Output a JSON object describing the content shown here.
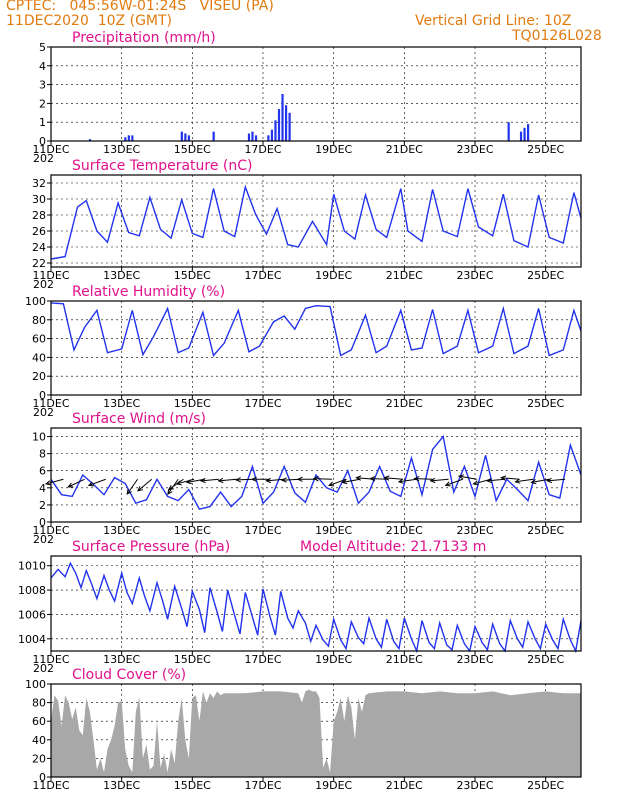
{
  "header": {
    "line1": "CPTEC:   045:56W-01:24S   VISEU (PA)",
    "line2": "11DEC2020  10Z (GMT)",
    "right1": "Vertical Grid Line: 10Z",
    "right2": "TQ0126L028"
  },
  "colors": {
    "header": "#e07b10",
    "title": "#e0118c",
    "series": "#2233ee",
    "cloud": "#a8a8a8",
    "wind": "#000000"
  },
  "x_axis": {
    "labels": [
      "11DEC",
      "13DEC",
      "15DEC",
      "17DEC",
      "19DEC",
      "21DEC",
      "23DEC",
      "25DEC"
    ],
    "label_days": [
      0,
      2,
      4,
      6,
      8,
      10,
      12,
      14
    ],
    "range_days": [
      0,
      15
    ],
    "year_stub": "202"
  },
  "chart_data": [
    {
      "id": "precip",
      "type": "bar",
      "title": "Precipitation (mm/h)",
      "ylim": [
        0,
        5
      ],
      "yticks": [
        0,
        1,
        2,
        3,
        4,
        5
      ],
      "grid": true,
      "bars_day_value": [
        [
          1.1,
          0.1
        ],
        [
          2.1,
          0.2
        ],
        [
          2.2,
          0.3
        ],
        [
          2.3,
          0.3
        ],
        [
          3.7,
          0.5
        ],
        [
          3.8,
          0.4
        ],
        [
          3.9,
          0.3
        ],
        [
          4.6,
          0.5
        ],
        [
          5.6,
          0.4
        ],
        [
          5.7,
          0.5
        ],
        [
          5.8,
          0.3
        ],
        [
          6.15,
          0.3
        ],
        [
          6.25,
          0.6
        ],
        [
          6.35,
          1.1
        ],
        [
          6.45,
          1.7
        ],
        [
          6.55,
          2.5
        ],
        [
          6.65,
          1.9
        ],
        [
          6.75,
          1.5
        ],
        [
          12.95,
          1.0
        ],
        [
          13.3,
          0.5
        ],
        [
          13.4,
          0.7
        ],
        [
          13.5,
          0.9
        ]
      ]
    },
    {
      "id": "temp",
      "type": "line",
      "title": "Surface Temperature (nC)",
      "ylim": [
        21.5,
        33
      ],
      "yticks": [
        22,
        24,
        26,
        28,
        30,
        32
      ],
      "grid": true,
      "x_days": [
        0,
        0.4,
        0.75,
        1.0,
        1.3,
        1.6,
        1.9,
        2.2,
        2.5,
        2.8,
        3.1,
        3.4,
        3.7,
        4.0,
        4.3,
        4.6,
        4.9,
        5.2,
        5.5,
        5.8,
        6.1,
        6.4,
        6.7,
        7.0,
        7.4,
        7.8,
        8.0,
        8.3,
        8.6,
        8.9,
        9.2,
        9.5,
        9.9,
        10.1,
        10.5,
        10.8,
        11.1,
        11.5,
        11.8,
        12.1,
        12.5,
        12.8,
        13.1,
        13.5,
        13.8,
        14.1,
        14.5,
        14.8,
        15.0
      ],
      "values": [
        22.5,
        22.8,
        29.0,
        29.8,
        26.0,
        24.6,
        29.5,
        25.8,
        25.4,
        30.2,
        26.2,
        25.1,
        29.9,
        25.7,
        25.2,
        31.3,
        26.0,
        25.3,
        31.5,
        28.0,
        25.6,
        28.8,
        24.3,
        24.0,
        27.2,
        24.3,
        30.6,
        26.0,
        25.0,
        30.5,
        26.2,
        25.2,
        31.3,
        26.0,
        24.7,
        31.2,
        26.0,
        25.3,
        31.3,
        26.5,
        25.4,
        30.6,
        24.8,
        24.0,
        30.5,
        25.2,
        24.5,
        30.8,
        27.6
      ]
    },
    {
      "id": "rh",
      "type": "line",
      "title": "Relative Humidity (%)",
      "ylim": [
        0,
        100
      ],
      "yticks": [
        0,
        20,
        40,
        60,
        80,
        100
      ],
      "grid": true,
      "x_days": [
        0,
        0.35,
        0.65,
        0.95,
        1.3,
        1.6,
        2.0,
        2.3,
        2.6,
        2.9,
        3.3,
        3.6,
        3.9,
        4.3,
        4.6,
        4.9,
        5.3,
        5.6,
        5.9,
        6.3,
        6.6,
        6.9,
        7.2,
        7.5,
        7.9,
        8.2,
        8.5,
        8.9,
        9.2,
        9.5,
        9.9,
        10.2,
        10.5,
        10.8,
        11.1,
        11.5,
        11.8,
        12.1,
        12.5,
        12.8,
        13.1,
        13.5,
        13.8,
        14.1,
        14.5,
        14.8,
        15.0
      ],
      "values": [
        98,
        97,
        48,
        72,
        90,
        45,
        49,
        90,
        43,
        62,
        92,
        45,
        50,
        88,
        42,
        55,
        90,
        46,
        52,
        78,
        84,
        70,
        92,
        95,
        94,
        42,
        48,
        85,
        45,
        52,
        90,
        48,
        50,
        91,
        44,
        52,
        90,
        45,
        52,
        92,
        44,
        52,
        92,
        42,
        48,
        90,
        68
      ]
    },
    {
      "id": "wind",
      "type": "line",
      "title": "Surface Wind (m/s)",
      "ylim": [
        0,
        11
      ],
      "yticks": [
        0,
        2,
        4,
        6,
        8,
        10
      ],
      "grid": true,
      "x_days": [
        0,
        0.3,
        0.6,
        0.9,
        1.2,
        1.5,
        1.8,
        2.1,
        2.4,
        2.7,
        3.0,
        3.3,
        3.6,
        3.9,
        4.2,
        4.5,
        4.8,
        5.1,
        5.4,
        5.7,
        6.0,
        6.3,
        6.6,
        6.9,
        7.2,
        7.5,
        7.8,
        8.1,
        8.4,
        8.7,
        9.0,
        9.3,
        9.6,
        9.9,
        10.2,
        10.5,
        10.8,
        11.1,
        11.4,
        11.7,
        12.0,
        12.3,
        12.6,
        12.9,
        13.2,
        13.5,
        13.8,
        14.1,
        14.4,
        14.7,
        15.0
      ],
      "values": [
        5.0,
        3.2,
        3.0,
        5.5,
        4.4,
        3.2,
        5.2,
        4.5,
        2.2,
        2.6,
        5.0,
        3.0,
        2.5,
        3.8,
        1.5,
        1.8,
        3.5,
        1.8,
        3.0,
        6.5,
        2.2,
        3.5,
        6.5,
        3.4,
        2.3,
        5.5,
        4.0,
        3.5,
        6.0,
        2.2,
        3.5,
        6.5,
        3.6,
        3.0,
        7.5,
        3.2,
        8.5,
        10.0,
        3.5,
        6.5,
        3.0,
        7.8,
        2.5,
        5.0,
        3.8,
        2.5,
        7.0,
        3.2,
        2.8,
        9.0,
        5.5
      ],
      "vectors_day_angle": [
        [
          0.35,
          195
        ],
        [
          0.95,
          205
        ],
        [
          1.55,
          200
        ],
        [
          2.45,
          235
        ],
        [
          2.85,
          220
        ],
        [
          3.6,
          235
        ],
        [
          3.75,
          215
        ],
        [
          4.05,
          195
        ],
        [
          4.35,
          190
        ],
        [
          4.75,
          185
        ],
        [
          5.25,
          185
        ],
        [
          5.75,
          182
        ],
        [
          6.2,
          180
        ],
        [
          6.6,
          185
        ],
        [
          7.05,
          183
        ],
        [
          7.5,
          180
        ],
        [
          7.95,
          178
        ],
        [
          8.35,
          200
        ],
        [
          8.75,
          190
        ],
        [
          9.15,
          175
        ],
        [
          9.55,
          178
        ],
        [
          9.95,
          175
        ],
        [
          10.35,
          188
        ],
        [
          10.8,
          178
        ],
        [
          11.25,
          185
        ],
        [
          11.65,
          200
        ],
        [
          12.05,
          170
        ],
        [
          12.45,
          195
        ],
        [
          12.85,
          185
        ],
        [
          13.25,
          175
        ],
        [
          13.65,
          188
        ],
        [
          14.1,
          190
        ],
        [
          14.55,
          185
        ]
      ]
    },
    {
      "id": "pressure",
      "type": "line",
      "title": "Surface Pressure (hPa)",
      "subtitle": "Model Altitude: 21.7133 m",
      "ylim": [
        1003,
        1010.8
      ],
      "yticks": [
        1004,
        1006,
        1008,
        1010
      ],
      "grid": true,
      "x_days": [
        0,
        0.2,
        0.4,
        0.55,
        0.7,
        0.85,
        1.0,
        1.15,
        1.3,
        1.5,
        1.65,
        1.8,
        2.0,
        2.15,
        2.3,
        2.5,
        2.65,
        2.8,
        3.0,
        3.15,
        3.3,
        3.5,
        3.7,
        3.85,
        4.0,
        4.2,
        4.35,
        4.5,
        4.7,
        4.85,
        5.0,
        5.2,
        5.35,
        5.5,
        5.7,
        5.85,
        6.0,
        6.2,
        6.35,
        6.5,
        6.7,
        6.85,
        7.0,
        7.2,
        7.35,
        7.5,
        7.7,
        7.85,
        8.0,
        8.2,
        8.35,
        8.5,
        8.7,
        8.85,
        9.0,
        9.2,
        9.35,
        9.5,
        9.7,
        9.85,
        10.0,
        10.2,
        10.35,
        10.5,
        10.7,
        10.85,
        11.0,
        11.2,
        11.35,
        11.5,
        11.7,
        11.85,
        12.0,
        12.2,
        12.35,
        12.5,
        12.7,
        12.85,
        13.0,
        13.2,
        13.35,
        13.5,
        13.7,
        13.85,
        14.0,
        14.2,
        14.35,
        14.5,
        14.7,
        14.85,
        15.0
      ],
      "values": [
        1009.0,
        1009.7,
        1009.1,
        1010.2,
        1009.4,
        1008.2,
        1009.6,
        1008.5,
        1007.3,
        1009.2,
        1008.0,
        1007.1,
        1009.4,
        1007.8,
        1006.9,
        1009.0,
        1007.5,
        1006.3,
        1008.6,
        1007.2,
        1005.6,
        1008.3,
        1006.5,
        1005.0,
        1007.9,
        1006.4,
        1004.5,
        1008.2,
        1006.2,
        1004.6,
        1008.0,
        1005.9,
        1004.4,
        1007.8,
        1005.8,
        1004.3,
        1008.1,
        1005.8,
        1004.3,
        1007.9,
        1005.7,
        1004.9,
        1006.3,
        1005.3,
        1003.8,
        1005.1,
        1003.9,
        1003.4,
        1005.6,
        1003.9,
        1003.2,
        1005.4,
        1004.1,
        1003.6,
        1005.7,
        1004.0,
        1003.3,
        1005.6,
        1003.8,
        1003.2,
        1005.7,
        1004.0,
        1003.0,
        1005.5,
        1003.7,
        1003.2,
        1005.3,
        1003.5,
        1003.1,
        1005.1,
        1003.6,
        1003.0,
        1005.0,
        1003.7,
        1003.1,
        1005.2,
        1003.6,
        1003.0,
        1005.5,
        1004.0,
        1003.3,
        1005.4,
        1004.0,
        1003.2,
        1005.2,
        1003.9,
        1003.2,
        1005.6,
        1003.9,
        1003.0,
        1005.5
      ]
    },
    {
      "id": "cloud",
      "type": "area",
      "title": "Cloud Cover (%)",
      "ylim": [
        0,
        100
      ],
      "yticks": [
        0,
        20,
        40,
        60,
        80,
        100
      ],
      "grid": true,
      "x_days": [
        0,
        0.1,
        0.2,
        0.3,
        0.4,
        0.5,
        0.6,
        0.7,
        0.8,
        0.9,
        1.0,
        1.1,
        1.2,
        1.3,
        1.4,
        1.5,
        1.6,
        1.7,
        1.8,
        1.9,
        2.0,
        2.1,
        2.2,
        2.3,
        2.4,
        2.5,
        2.6,
        2.7,
        2.8,
        2.9,
        3.0,
        3.1,
        3.2,
        3.3,
        3.4,
        3.5,
        3.6,
        3.7,
        3.8,
        3.9,
        4.0,
        4.1,
        4.2,
        4.3,
        4.4,
        4.5,
        4.6,
        4.7,
        4.8,
        4.9,
        5.0,
        5.5,
        6.0,
        6.5,
        7.0,
        7.1,
        7.2,
        7.3,
        7.4,
        7.5,
        7.6,
        7.7,
        7.8,
        7.9,
        8.0,
        8.1,
        8.2,
        8.3,
        8.4,
        8.5,
        8.6,
        8.7,
        8.8,
        8.9,
        9.0,
        9.5,
        10.0,
        10.5,
        11.0,
        11.5,
        12.0,
        12.5,
        13.0,
        13.5,
        14.0,
        14.5,
        15.0
      ],
      "values": [
        60,
        88,
        82,
        55,
        88,
        80,
        62,
        75,
        50,
        45,
        85,
        70,
        40,
        8,
        20,
        5,
        30,
        40,
        55,
        80,
        82,
        30,
        12,
        5,
        70,
        86,
        20,
        35,
        8,
        12,
        60,
        10,
        25,
        5,
        30,
        15,
        60,
        85,
        40,
        20,
        85,
        88,
        60,
        92,
        80,
        90,
        85,
        92,
        88,
        90,
        90,
        90,
        92,
        92,
        90,
        80,
        92,
        94,
        92,
        92,
        85,
        10,
        20,
        5,
        60,
        70,
        85,
        60,
        88,
        75,
        40,
        85,
        70,
        88,
        90,
        92,
        92,
        90,
        92,
        90,
        90,
        92,
        88,
        90,
        92,
        90,
        90
      ]
    }
  ]
}
